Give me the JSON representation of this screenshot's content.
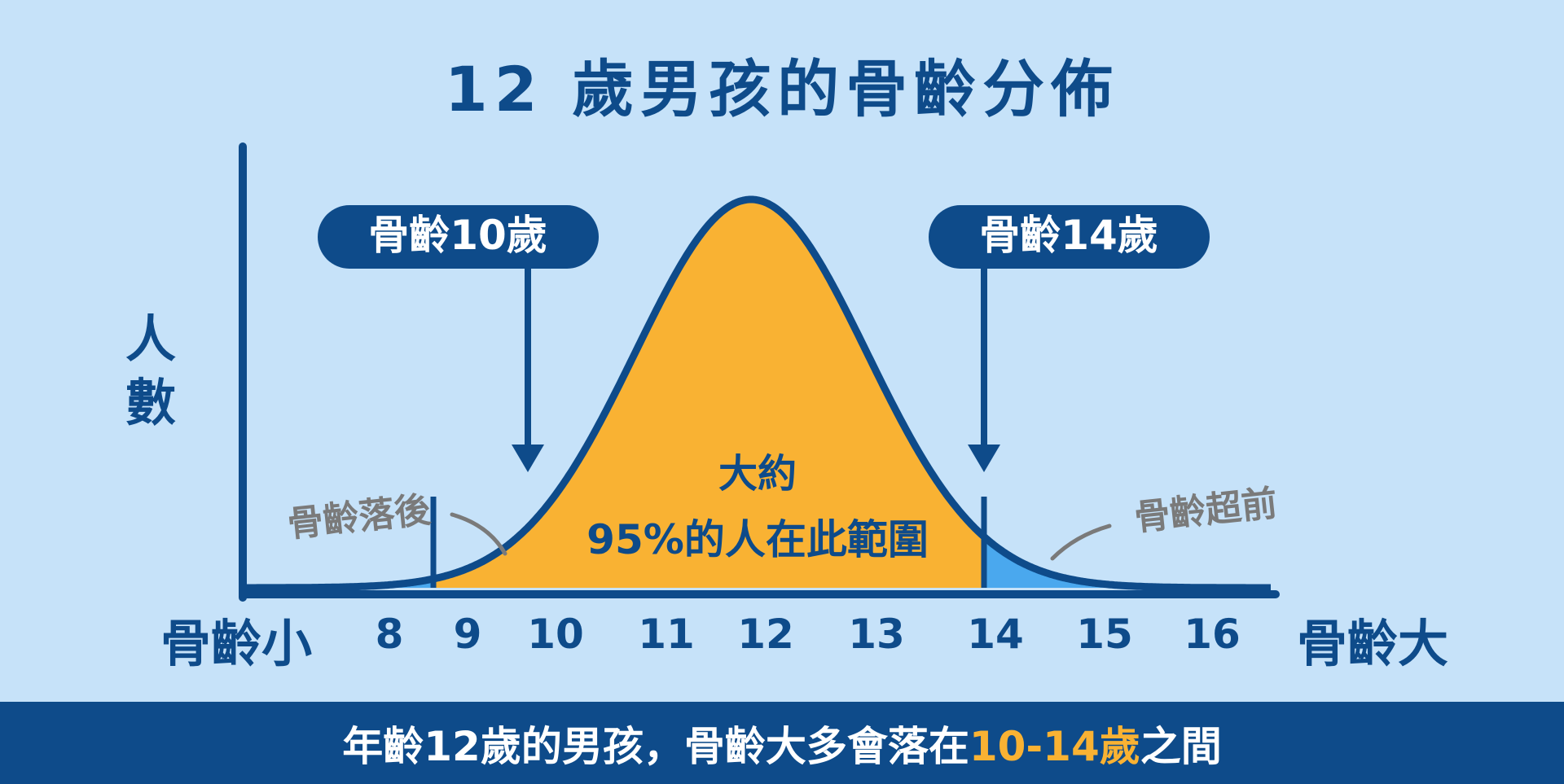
{
  "title": "12 歲男孩的骨齡分佈",
  "y_label": "人數",
  "x_left_label": "骨齡小",
  "x_right_label": "骨齡大",
  "x_ticks": [
    "8",
    "9",
    "10",
    "11",
    "12",
    "13",
    "14",
    "15",
    "16"
  ],
  "callouts": {
    "left": "骨齡10歲",
    "right": "骨齡14歲"
  },
  "center_text": {
    "line1": "大約",
    "line2": "95%的人在此範圍"
  },
  "side_notes": {
    "left": "骨齡落後",
    "right": "骨齡超前"
  },
  "footer": {
    "before": "年齡12歲的男孩，骨齡大多會落在",
    "highlight": "10-14歲",
    "after": "之間"
  },
  "colors": {
    "background": "#c6e2f9",
    "navy": "#0e4b8a",
    "center_fill": "#f9b233",
    "tail_fill": "#4aa8ee",
    "note_gray": "#7a7a7a",
    "footer_highlight": "#f9b233"
  },
  "distribution": {
    "type": "normal",
    "mean": 12,
    "highlight_range": [
      10,
      14
    ]
  }
}
